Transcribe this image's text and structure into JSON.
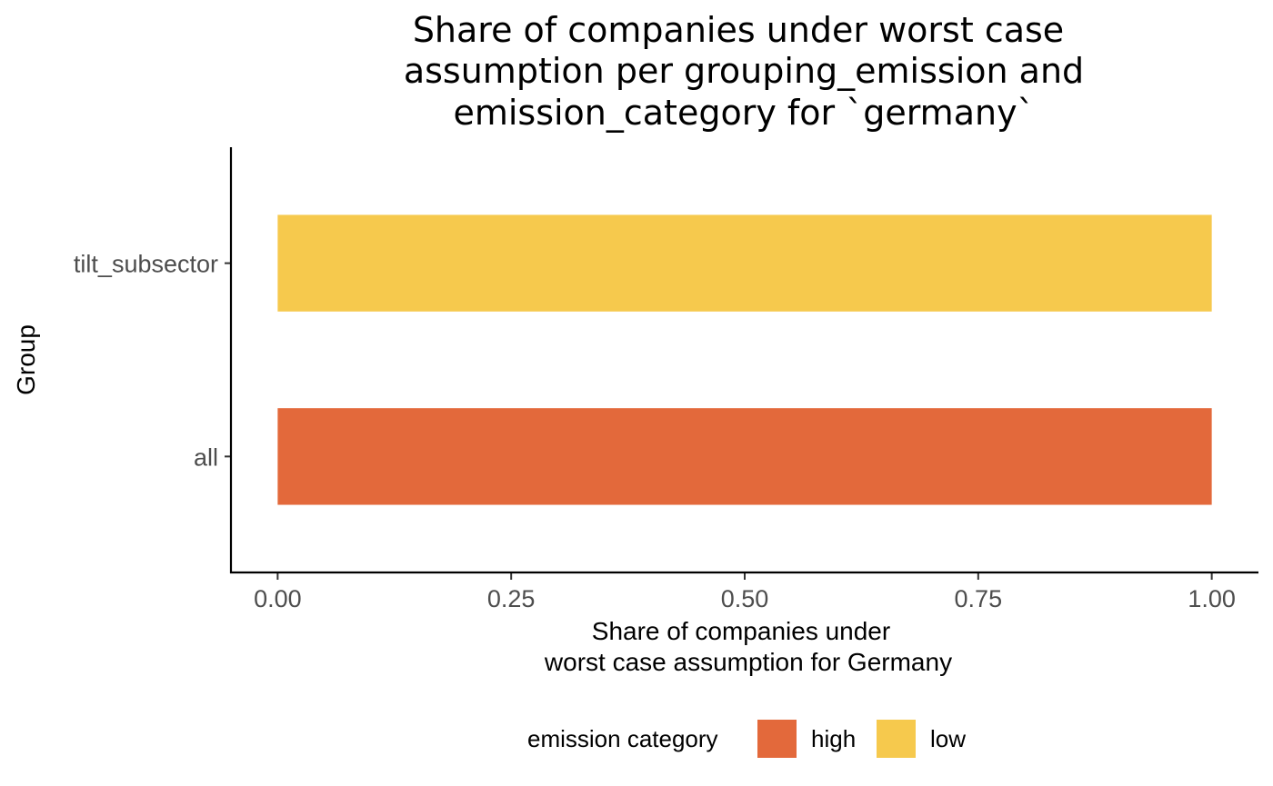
{
  "chart_data": {
    "type": "bar",
    "orientation": "horizontal",
    "title_lines": [
      "Share of companies under worst case",
      "assumption per grouping_emission and",
      "emission_category for `germany`"
    ],
    "xlabel_lines": [
      "Share of companies under",
      "worst case assumption for Germany"
    ],
    "ylabel": "Group",
    "categories": [
      "all",
      "tilt_subsector"
    ],
    "bars": [
      {
        "category": "all",
        "value": 1.0,
        "emission_category": "high"
      },
      {
        "category": "tilt_subsector",
        "value": 1.0,
        "emission_category": "low"
      }
    ],
    "xlim": [
      -0.05,
      1.05
    ],
    "xticks": [
      0.0,
      0.25,
      0.5,
      0.75,
      1.0
    ],
    "xtick_labels": [
      "0.00",
      "0.25",
      "0.50",
      "0.75",
      "1.00"
    ],
    "grid": false,
    "legend": {
      "placement": "bottom",
      "title": "emission category",
      "entries": [
        {
          "label": "high",
          "color": "#e3693b"
        },
        {
          "label": "low",
          "color": "#f6c94d"
        }
      ]
    }
  }
}
